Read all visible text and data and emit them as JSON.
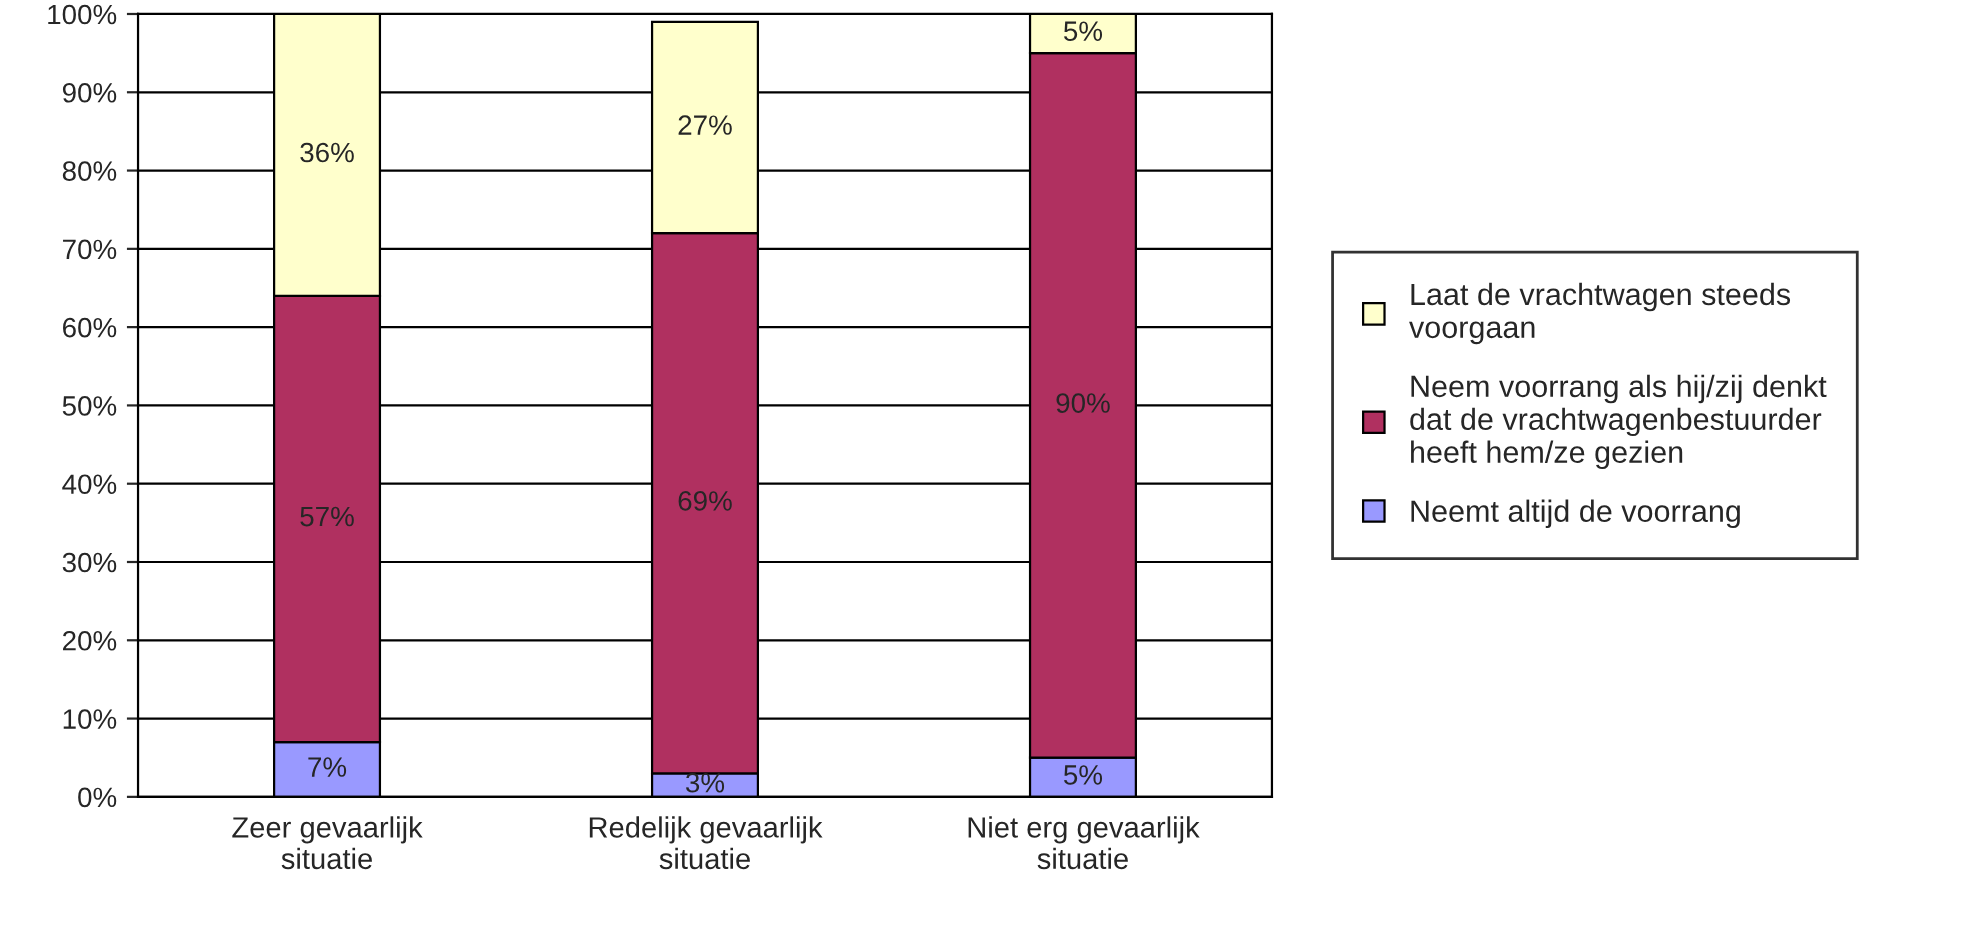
{
  "chart_data": {
    "type": "bar",
    "stacked": true,
    "categories": [
      "Zeer gevaarlijk\nsituatie",
      "Redelijk gevaarlijk\nsituatie",
      "Niet erg gevaarlijk\nsituatie"
    ],
    "series": [
      {
        "name": "Neemt altijd de voorrang",
        "color": "#9999ff",
        "values": [
          7,
          3,
          5
        ],
        "value_labels": [
          "7%",
          "3%",
          "5%"
        ]
      },
      {
        "name": "Neem voorrang als hij/zij denkt\ndat de vrachtwagenbestuurder\nheeft hem/ze gezien",
        "color": "#b03060",
        "values": [
          57,
          69,
          90
        ],
        "value_labels": [
          "57%",
          "69%",
          "90%"
        ]
      },
      {
        "name": "Laat de vrachtwagen steeds\nvoorgaan",
        "color": "#ffffcc",
        "values": [
          36,
          27,
          5
        ],
        "value_labels": [
          "36%",
          "27%",
          "5%"
        ]
      }
    ],
    "ylim": [
      0,
      100
    ],
    "yticks": [
      {
        "value": 0,
        "label": "0%"
      },
      {
        "value": 10,
        "label": "10%"
      },
      {
        "value": 20,
        "label": "20%"
      },
      {
        "value": 30,
        "label": "30%"
      },
      {
        "value": 40,
        "label": "40%"
      },
      {
        "value": 50,
        "label": "50%"
      },
      {
        "value": 60,
        "label": "60%"
      },
      {
        "value": 70,
        "label": "70%"
      },
      {
        "value": 80,
        "label": "80%"
      },
      {
        "value": 90,
        "label": "90%"
      },
      {
        "value": 100,
        "label": "100%"
      }
    ],
    "grid": "y",
    "legend": "right"
  }
}
